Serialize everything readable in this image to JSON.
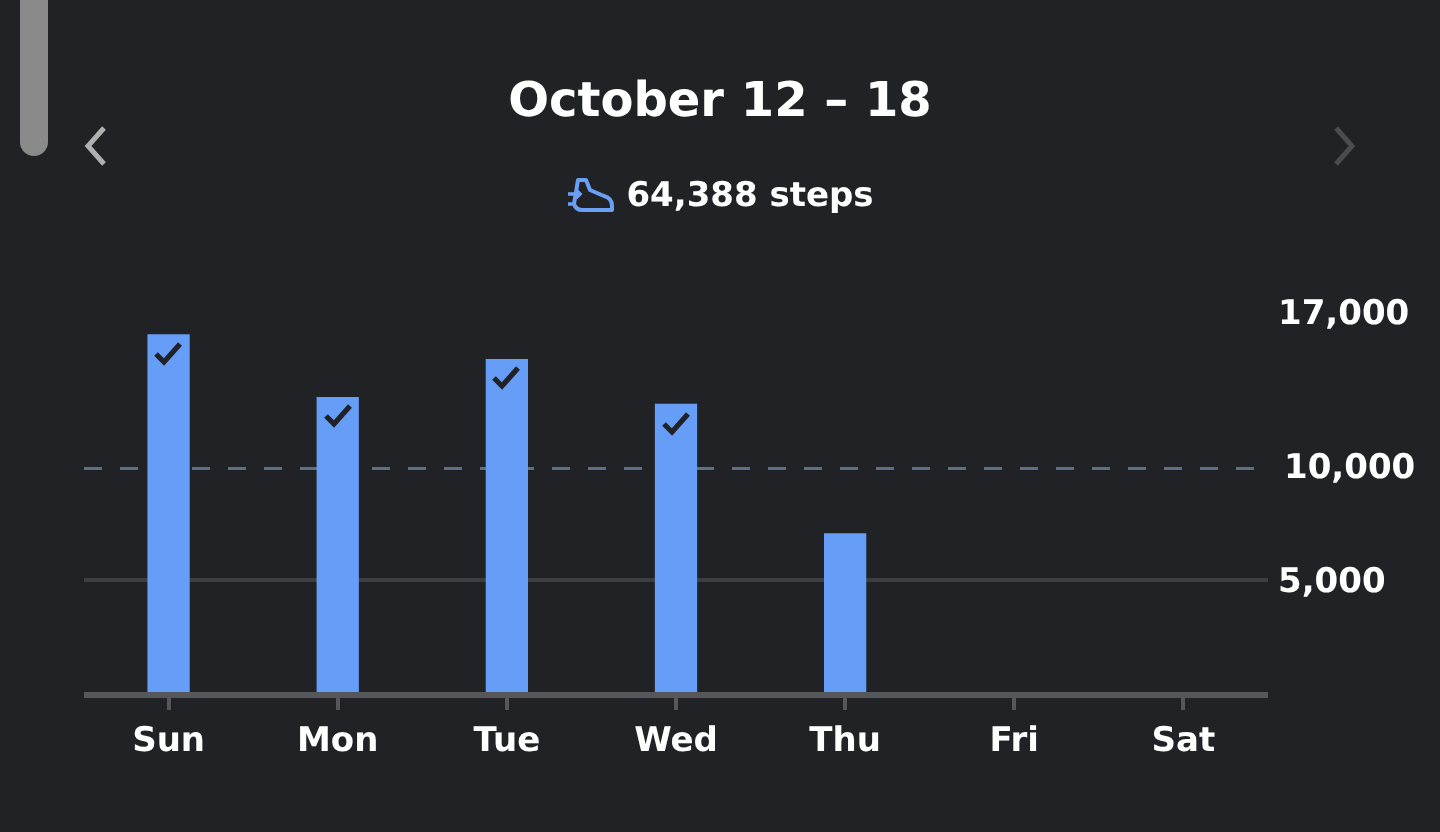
{
  "chart_data": {
    "type": "bar",
    "title": "October 12 – 18",
    "subtitle": "64,388 steps",
    "categories": [
      "Sun",
      "Mon",
      "Tue",
      "Wed",
      "Thu",
      "Fri",
      "Sat"
    ],
    "values": [
      16000,
      13200,
      14900,
      12900,
      7100,
      null,
      null
    ],
    "color": "#669df6",
    "ylim": [
      0,
      17000
    ],
    "yticks": [
      {
        "value": 5000,
        "label": "5,000"
      },
      {
        "value": 17000,
        "label": "17,000"
      }
    ],
    "grid": "y",
    "ref_lines": [
      {
        "axis": "y",
        "value": 10000,
        "label": "10,000",
        "color": "#5b7189",
        "line_style": "dashed"
      }
    ]
  }
}
